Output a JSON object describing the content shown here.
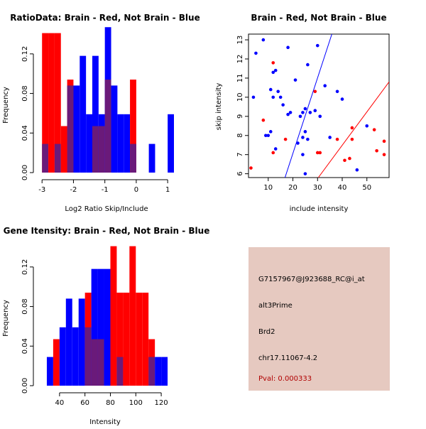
{
  "colors": {
    "red": "#ff0000",
    "blue": "#0000ff",
    "overlap": "#6a1a7a",
    "panel_bg": "#e6c9c0",
    "pval_text": "#b00000",
    "grid": "#000000"
  },
  "chart_data": [
    {
      "id": "ratio_hist",
      "type": "bar",
      "title": "RatioData: Brain - Red, Not Brain - Blue",
      "xlabel": "Log2 Ratio Skip/Include",
      "ylabel": "Frequency",
      "xlim": [
        -3.05,
        1.2
      ],
      "ylim": [
        0,
        0.14
      ],
      "xticks": [
        -3,
        -2,
        -1,
        0,
        1
      ],
      "xtick_labels": [
        "-3",
        "-2",
        "-1",
        "0",
        "1"
      ],
      "yticks": [
        0.0,
        0.04,
        0.08,
        0.12
      ],
      "ytick_labels": [
        "0.00",
        "0.04",
        "0.08",
        "0.12"
      ],
      "bin_width": 0.2,
      "bin_starts": [
        -3.0,
        -2.8,
        -2.6,
        -2.4,
        -2.2,
        -2.0,
        -1.8,
        -1.6,
        -1.4,
        -1.2,
        -1.0,
        -0.8,
        -0.6,
        -0.4,
        -0.2,
        0.0,
        0.2,
        0.4,
        0.6,
        0.8,
        1.0
      ],
      "series": [
        {
          "name": "Brain",
          "color": "red",
          "values": [
            0.141,
            0.141,
            0.141,
            0.047,
            0.094,
            0.0,
            0.0,
            0.0,
            0.047,
            0.047,
            0.094,
            0.0,
            0.0,
            0.0,
            0.094,
            0.0,
            0.0,
            0.0,
            0.0,
            0.0,
            0.0
          ]
        },
        {
          "name": "Not Brain",
          "color": "blue",
          "values": [
            0.029,
            0.0,
            0.029,
            0.0,
            0.088,
            0.088,
            0.118,
            0.059,
            0.118,
            0.059,
            0.147,
            0.088,
            0.059,
            0.059,
            0.029,
            0.0,
            0.0,
            0.029,
            0.0,
            0.0,
            0.059
          ]
        }
      ]
    },
    {
      "id": "intensity_scatter",
      "type": "scatter",
      "title": "Brain - Red, Not Brain - Blue",
      "xlabel": "include intensity",
      "ylabel": "skip intensity",
      "xlim": [
        2,
        59
      ],
      "ylim": [
        5.8,
        13.3
      ],
      "xticks": [
        10,
        20,
        30,
        40,
        50
      ],
      "xtick_labels": [
        "10",
        "20",
        "30",
        "40",
        "50"
      ],
      "yticks": [
        6,
        7,
        8,
        9,
        10,
        11,
        12,
        13
      ],
      "ytick_labels": [
        "6",
        "7",
        "8",
        "9",
        "10",
        "11",
        "12",
        "13"
      ],
      "points_blue": [
        [
          5,
          12.3
        ],
        [
          8,
          13.0
        ],
        [
          4,
          10.0
        ],
        [
          11,
          10.4
        ],
        [
          12,
          11.3
        ],
        [
          13,
          11.4
        ],
        [
          14,
          10.3
        ],
        [
          15,
          10.0
        ],
        [
          12,
          10.0
        ],
        [
          16,
          9.6
        ],
        [
          18,
          9.1
        ],
        [
          19,
          9.2
        ],
        [
          18,
          12.6
        ],
        [
          21,
          10.9
        ],
        [
          23,
          9.0
        ],
        [
          24,
          9.2
        ],
        [
          25,
          9.4
        ],
        [
          27,
          9.2
        ],
        [
          26,
          11.7
        ],
        [
          30,
          12.7
        ],
        [
          29,
          9.3
        ],
        [
          31,
          9.0
        ],
        [
          33,
          10.6
        ],
        [
          35,
          7.9
        ],
        [
          38,
          10.3
        ],
        [
          40,
          9.9
        ],
        [
          25,
          8.2
        ],
        [
          24,
          7.9
        ],
        [
          22,
          7.6
        ],
        [
          24,
          7.0
        ],
        [
          26,
          7.8
        ],
        [
          50,
          8.5
        ],
        [
          46,
          6.2
        ],
        [
          10,
          8.0
        ],
        [
          13,
          7.3
        ],
        [
          25,
          6.0
        ],
        [
          9,
          8.0
        ],
        [
          11,
          8.2
        ]
      ],
      "points_red": [
        [
          3,
          6.3
        ],
        [
          8,
          8.8
        ],
        [
          12,
          11.8
        ],
        [
          12,
          7.1
        ],
        [
          17,
          7.8
        ],
        [
          29,
          10.3
        ],
        [
          30,
          7.1
        ],
        [
          31,
          7.1
        ],
        [
          38,
          7.8
        ],
        [
          41,
          6.7
        ],
        [
          43,
          6.8
        ],
        [
          44,
          8.4
        ],
        [
          44,
          7.8
        ],
        [
          53,
          8.3
        ],
        [
          54,
          7.2
        ],
        [
          57,
          7.7
        ],
        [
          57,
          7.0
        ]
      ],
      "lines": [
        {
          "color": "blue",
          "x": [
            16.8,
            35.8
          ],
          "y": [
            5.8,
            13.3
          ]
        },
        {
          "color": "red",
          "x": [
            30.3,
            59
          ],
          "y": [
            5.8,
            10.8
          ]
        }
      ]
    },
    {
      "id": "intensity_hist",
      "type": "bar",
      "title": "Gene Itensity: Brain - Red, Not Brain - Blue",
      "xlabel": "Intensity",
      "ylabel": "Frequency",
      "xlim": [
        25,
        130
      ],
      "ylim": [
        0,
        0.14
      ],
      "xticks": [
        40,
        60,
        80,
        100,
        120
      ],
      "xtick_labels": [
        "40",
        "60",
        "80",
        "100",
        "120"
      ],
      "yticks": [
        0.0,
        0.04,
        0.08,
        0.12
      ],
      "ytick_labels": [
        "0.00",
        "0.04",
        "0.08",
        "0.12"
      ],
      "bin_width": 5,
      "bin_starts": [
        30,
        35,
        40,
        45,
        50,
        55,
        60,
        65,
        70,
        75,
        80,
        85,
        90,
        95,
        100,
        105,
        110,
        115,
        120
      ],
      "series": [
        {
          "name": "Brain",
          "color": "red",
          "values": [
            0.0,
            0.047,
            0.0,
            0.0,
            0.0,
            0.0,
            0.094,
            0.047,
            0.047,
            0.0,
            0.141,
            0.094,
            0.094,
            0.141,
            0.094,
            0.094,
            0.047,
            0.0,
            0.0
          ]
        },
        {
          "name": "Not Brain",
          "color": "blue",
          "values": [
            0.029,
            0.0,
            0.059,
            0.088,
            0.059,
            0.088,
            0.059,
            0.118,
            0.118,
            0.118,
            0.0,
            0.029,
            0.0,
            0.0,
            0.0,
            0.0,
            0.029,
            0.029,
            0.029
          ]
        }
      ]
    }
  ],
  "info_panel": {
    "probe_id": "G7157967@J923688_RC@i_at",
    "event_type": "alt3Prime",
    "gene": "Brd2",
    "location": "chr17.11067-4.2",
    "pval": "Pval: 0.000333"
  }
}
